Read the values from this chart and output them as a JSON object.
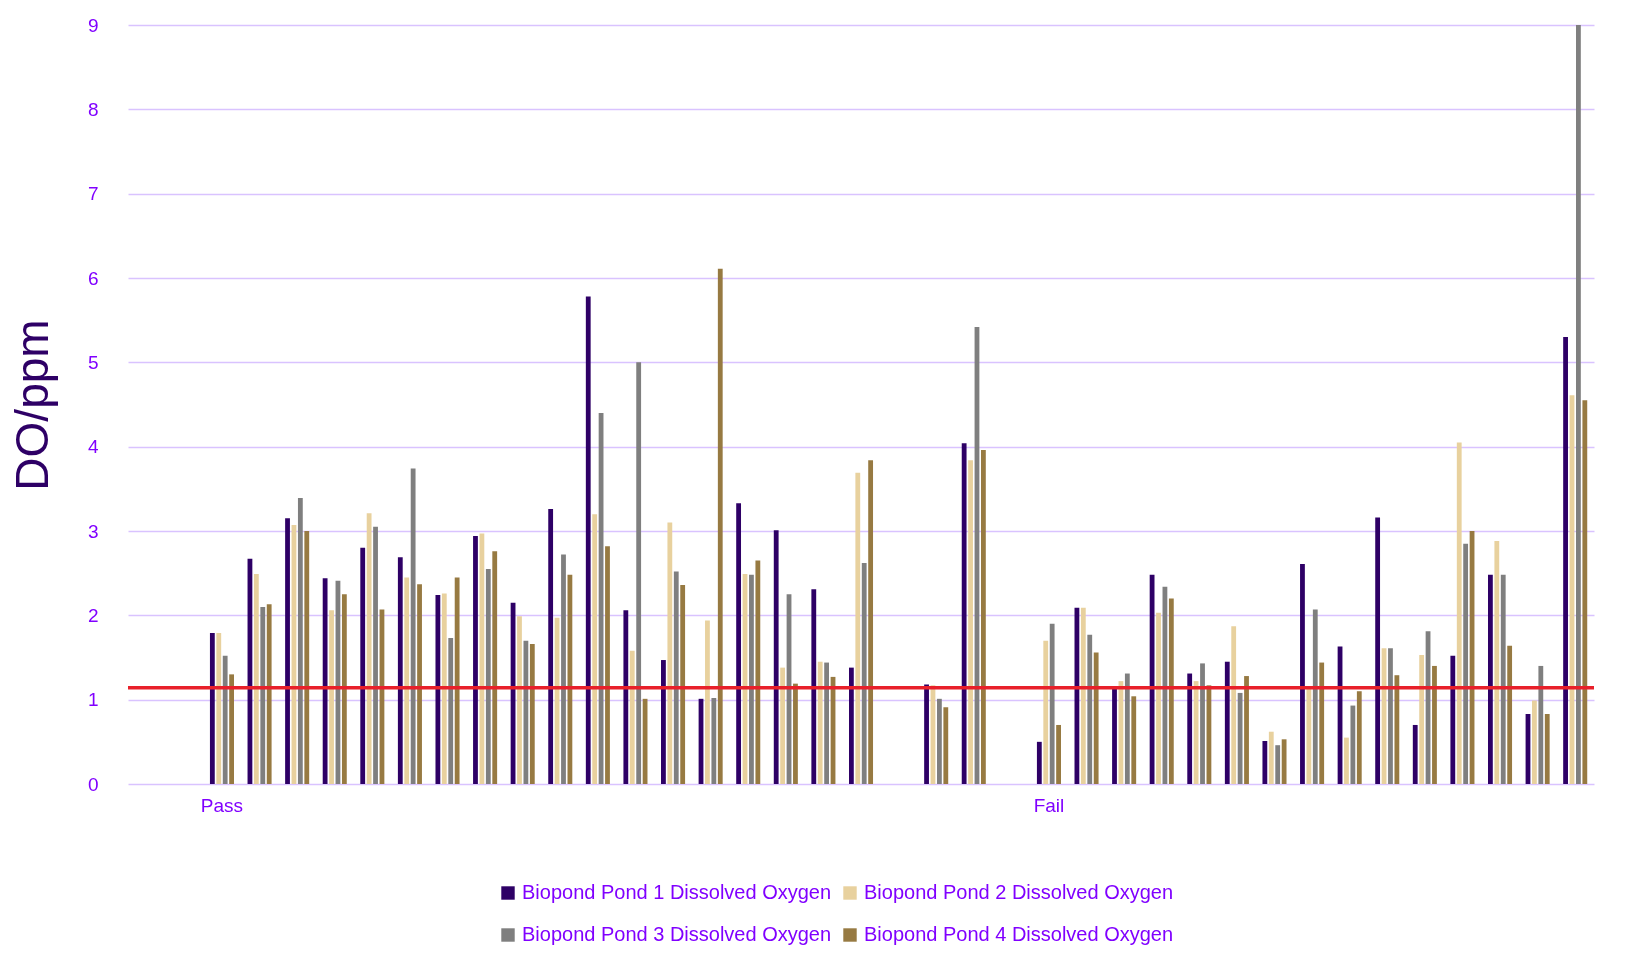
{
  "chart_data": {
    "type": "bar",
    "ylabel": "DO/ppm",
    "categories": [
      null,
      null,
      "Pass",
      null,
      null,
      null,
      null,
      null,
      null,
      null,
      null,
      null,
      null,
      null,
      null,
      null,
      null,
      null,
      null,
      null,
      null,
      null,
      null,
      null,
      "Fail",
      null,
      null,
      null,
      null,
      null,
      null,
      null,
      null,
      null,
      null,
      null,
      null,
      null,
      null
    ],
    "series": [
      {
        "name": "Biopond Pond 1 Dissolved Oxygen",
        "color": "#2e0066",
        "values": [
          null,
          null,
          1.79,
          2.67,
          3.15,
          2.44,
          2.8,
          2.69,
          2.24,
          2.94,
          2.15,
          3.26,
          5.78,
          2.06,
          1.47,
          1.01,
          3.33,
          3.01,
          2.31,
          1.38,
          null,
          1.18,
          4.04,
          null,
          0.5,
          2.09,
          1.13,
          2.48,
          1.31,
          1.45,
          0.51,
          2.61,
          1.63,
          3.16,
          0.7,
          1.52,
          2.48,
          0.83,
          5.3
        ]
      },
      {
        "name": "Biopond Pond 2 Dissolved Oxygen",
        "color": "#e8d19e",
        "values": [
          null,
          null,
          1.79,
          2.49,
          3.07,
          2.06,
          3.21,
          2.45,
          2.26,
          2.97,
          1.99,
          1.97,
          3.2,
          1.58,
          3.1,
          1.94,
          2.49,
          1.38,
          1.45,
          3.69,
          null,
          1.17,
          3.84,
          null,
          1.7,
          2.09,
          1.22,
          2.03,
          1.22,
          1.87,
          0.62,
          1.15,
          0.55,
          1.61,
          1.53,
          4.05,
          2.88,
          0.99,
          4.61
        ]
      },
      {
        "name": "Biopond Pond 3 Dissolved Oxygen",
        "color": "#7f7f7f",
        "values": [
          null,
          null,
          1.52,
          2.1,
          3.39,
          2.41,
          3.05,
          3.74,
          1.73,
          2.55,
          1.7,
          2.72,
          4.4,
          5.0,
          2.52,
          1.02,
          2.48,
          2.25,
          1.44,
          2.62,
          null,
          1.01,
          5.42,
          null,
          1.9,
          1.77,
          1.31,
          2.34,
          1.43,
          1.08,
          0.46,
          2.07,
          0.93,
          1.61,
          1.81,
          2.85,
          2.48,
          1.4,
          9.0
        ]
      },
      {
        "name": "Biopond Pond 4 Dissolved Oxygen",
        "color": "#977a42",
        "values": [
          null,
          null,
          1.3,
          2.13,
          3.0,
          2.25,
          2.07,
          2.37,
          2.45,
          2.76,
          1.66,
          2.48,
          2.82,
          1.01,
          2.36,
          6.11,
          2.65,
          1.19,
          1.27,
          3.84,
          null,
          0.91,
          3.96,
          null,
          0.7,
          1.56,
          1.04,
          2.2,
          1.17,
          1.28,
          0.53,
          1.44,
          1.1,
          1.29,
          1.4,
          3.0,
          1.64,
          0.83,
          4.55
        ]
      }
    ],
    "ylim": [
      0,
      9
    ],
    "yticks": [
      0,
      1,
      2,
      3,
      4,
      5,
      6,
      7,
      8,
      9
    ],
    "grid": "y",
    "legend": "bottom",
    "ref_lines": [
      {
        "axis": "y",
        "value": 1.14,
        "color": "#e8202a"
      }
    ]
  }
}
